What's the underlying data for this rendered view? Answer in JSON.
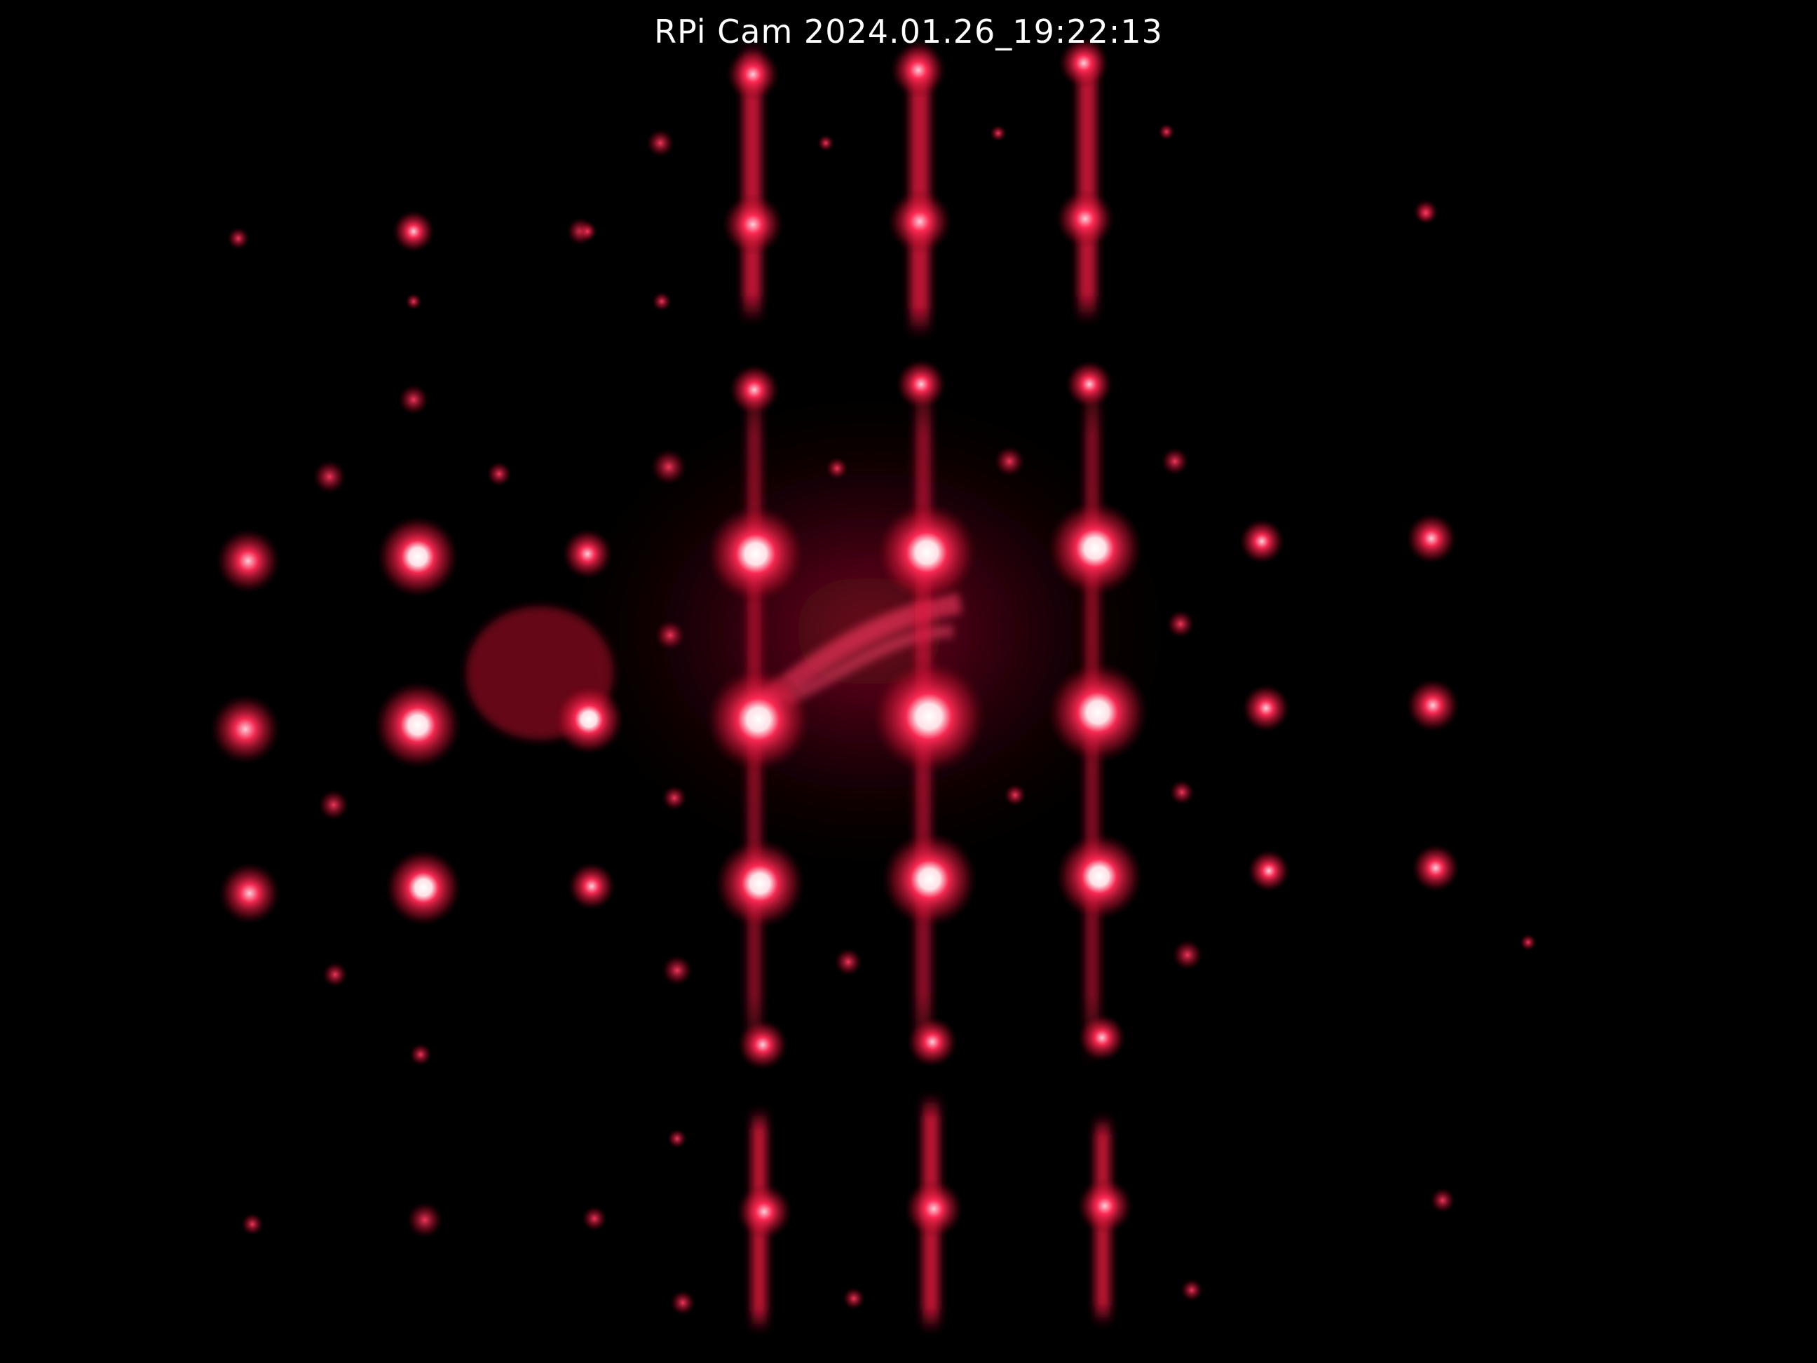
{
  "camera": {
    "overlay_text": "RPi  Cam  2024.01.26_19:22:13"
  },
  "colors": {
    "background": "#000000",
    "spot_core": "#ffffff",
    "spot_glow": "#ff1f4b",
    "spot_dim": "#b0102e"
  }
}
